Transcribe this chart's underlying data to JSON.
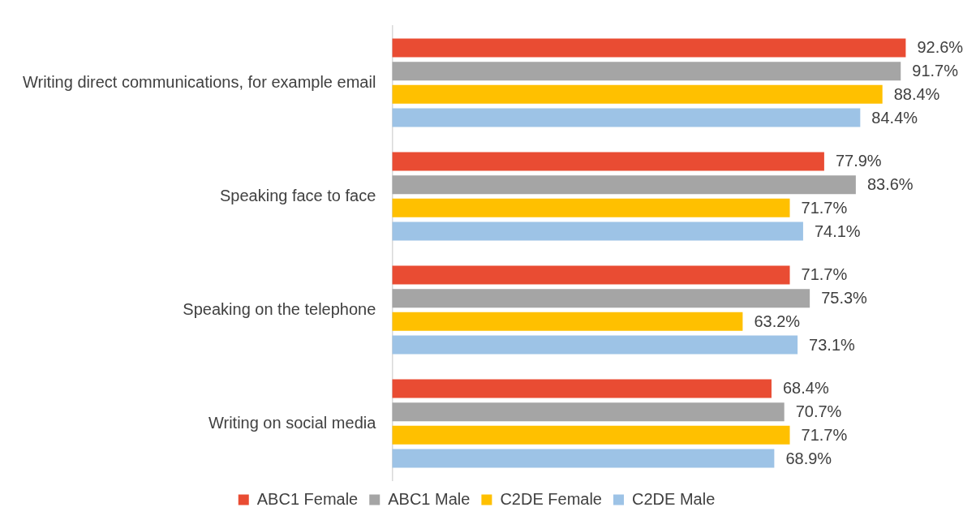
{
  "chart_data": {
    "type": "bar",
    "orientation": "horizontal",
    "categories": [
      "Writing direct communications, for example email",
      "Speaking face to face",
      "Speaking on the telephone",
      "Writing on social media"
    ],
    "series": [
      {
        "name": "ABC1 Female",
        "color": "#e94c33",
        "values": [
          92.6,
          77.9,
          71.7,
          68.4
        ],
        "value_labels": [
          "92.6%",
          "77.9%",
          "71.7%",
          "68.4%"
        ]
      },
      {
        "name": "ABC1 Male",
        "color": "#a5a5a5",
        "values": [
          91.7,
          83.6,
          75.3,
          70.7
        ],
        "value_labels": [
          "91.7%",
          "83.6%",
          "75.3%",
          "70.7%"
        ]
      },
      {
        "name": "C2DE Female",
        "color": "#ffc000",
        "values": [
          88.4,
          71.7,
          63.2,
          71.7
        ],
        "value_labels": [
          "88.4%",
          "71.7%",
          "63.2%",
          "71.7%"
        ]
      },
      {
        "name": "C2DE Male",
        "color": "#9dc3e6",
        "values": [
          84.4,
          74.1,
          73.1,
          68.9
        ],
        "value_labels": [
          "84.4%",
          "74.1%",
          "73.1%",
          "68.9%"
        ]
      }
    ],
    "tick_labels": "y",
    "legend": "bottom"
  }
}
